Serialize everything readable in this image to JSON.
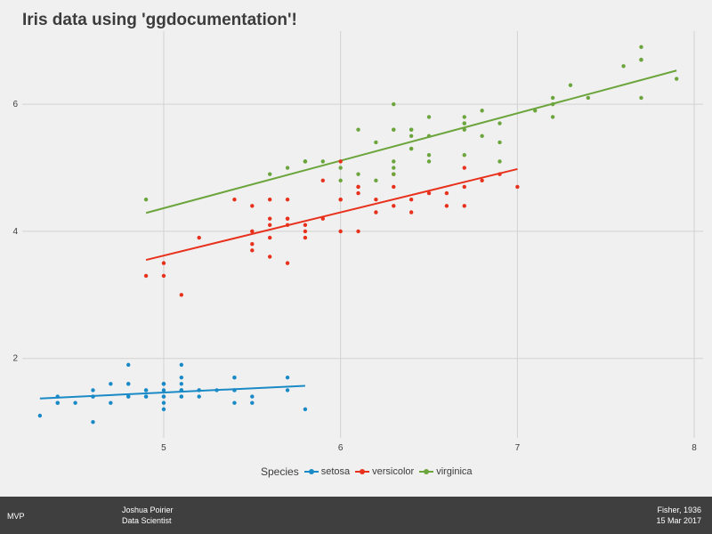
{
  "title": "Iris data using 'ggdocumentation'!",
  "legend": {
    "title": "Species"
  },
  "footer": {
    "left": "MVP",
    "author": "Joshua Poirier",
    "role": "Data Scientist",
    "source": "Fisher, 1936",
    "date": "15 Mar 2017"
  },
  "colors": {
    "setosa": "#1a8ac7",
    "versicolor": "#e8311c",
    "virginica": "#6ba53c",
    "grid": "#d2d2d2",
    "text": "#3c3c3c"
  },
  "chart_data": {
    "type": "scatter",
    "title": "Iris data using 'ggdocumentation'!",
    "xlabel": "",
    "ylabel": "",
    "xlim": [
      4.2,
      8.05
    ],
    "ylim": [
      0.75,
      7.15
    ],
    "xticks": [
      5,
      6,
      7,
      8
    ],
    "yticks": [
      2,
      4,
      6
    ],
    "grid": true,
    "legend_position": "bottom",
    "series": [
      {
        "name": "setosa",
        "color": "#1a8ac7",
        "x": [
          5.1,
          4.9,
          4.7,
          4.6,
          5.0,
          5.4,
          4.6,
          5.0,
          4.4,
          4.9,
          5.4,
          4.8,
          4.8,
          4.3,
          5.8,
          5.7,
          5.4,
          5.1,
          5.7,
          5.1,
          5.4,
          5.1,
          4.6,
          5.1,
          4.8,
          5.0,
          5.0,
          5.2,
          5.2,
          4.7,
          4.8,
          5.4,
          5.2,
          5.5,
          4.9,
          5.0,
          5.5,
          4.9,
          4.4,
          5.1,
          5.0,
          4.5,
          4.4,
          5.0,
          5.1,
          4.8,
          5.1,
          4.6,
          5.3,
          5.0
        ],
        "y": [
          1.4,
          1.4,
          1.3,
          1.5,
          1.4,
          1.7,
          1.4,
          1.5,
          1.4,
          1.5,
          1.5,
          1.6,
          1.4,
          1.1,
          1.2,
          1.5,
          1.3,
          1.4,
          1.7,
          1.5,
          1.7,
          1.5,
          1.0,
          1.7,
          1.9,
          1.6,
          1.6,
          1.5,
          1.4,
          1.6,
          1.6,
          1.5,
          1.5,
          1.4,
          1.5,
          1.2,
          1.3,
          1.4,
          1.3,
          1.5,
          1.3,
          1.3,
          1.3,
          1.6,
          1.9,
          1.4,
          1.6,
          1.4,
          1.5,
          1.4
        ],
        "fit": [
          [
            4.3,
            1.37
          ],
          [
            5.8,
            1.57
          ]
        ]
      },
      {
        "name": "versicolor",
        "color": "#e8311c",
        "x": [
          7.0,
          6.4,
          6.9,
          5.5,
          6.5,
          5.7,
          6.3,
          4.9,
          6.6,
          5.2,
          5.0,
          5.9,
          6.0,
          6.1,
          5.6,
          6.7,
          5.6,
          5.8,
          6.2,
          5.6,
          5.9,
          6.1,
          6.3,
          6.1,
          6.4,
          6.6,
          6.8,
          6.7,
          6.0,
          5.7,
          5.5,
          5.5,
          5.8,
          6.0,
          5.4,
          6.0,
          6.7,
          6.3,
          5.6,
          5.5,
          5.5,
          6.1,
          5.8,
          5.0,
          5.6,
          5.7,
          5.7,
          6.2,
          5.1,
          5.7
        ],
        "y": [
          4.7,
          4.5,
          4.9,
          4.0,
          4.6,
          4.5,
          4.7,
          3.3,
          4.6,
          3.9,
          3.5,
          4.2,
          4.0,
          4.7,
          3.6,
          4.4,
          4.5,
          4.1,
          4.5,
          3.9,
          4.8,
          4.0,
          4.9,
          4.7,
          4.3,
          4.4,
          4.8,
          5.0,
          4.5,
          3.5,
          3.8,
          3.7,
          3.9,
          5.1,
          4.5,
          4.5,
          4.7,
          4.4,
          4.1,
          4.0,
          4.4,
          4.6,
          4.0,
          3.3,
          4.2,
          4.2,
          4.2,
          4.3,
          3.0,
          4.1
        ],
        "fit": [
          [
            4.9,
            3.55
          ],
          [
            7.0,
            4.98
          ]
        ]
      },
      {
        "name": "virginica",
        "color": "#6ba53c",
        "x": [
          6.3,
          5.8,
          7.1,
          6.3,
          6.5,
          7.6,
          4.9,
          7.3,
          6.7,
          7.2,
          6.5,
          6.4,
          6.8,
          5.7,
          5.8,
          6.4,
          6.5,
          7.7,
          7.7,
          6.0,
          6.9,
          5.6,
          7.7,
          6.3,
          6.7,
          7.2,
          6.2,
          6.1,
          6.4,
          7.2,
          7.4,
          7.9,
          6.4,
          6.3,
          6.1,
          7.7,
          6.3,
          6.4,
          6.0,
          6.9,
          6.7,
          6.9,
          5.8,
          6.8,
          6.7,
          6.7,
          6.3,
          6.5,
          6.2,
          5.9
        ],
        "y": [
          6.0,
          5.1,
          5.9,
          5.6,
          5.8,
          6.6,
          4.5,
          6.3,
          5.8,
          6.1,
          5.1,
          5.3,
          5.5,
          5.0,
          5.1,
          5.3,
          5.5,
          6.7,
          6.9,
          5.0,
          5.7,
          4.9,
          6.7,
          4.9,
          5.7,
          6.0,
          4.8,
          4.9,
          5.6,
          5.8,
          6.1,
          6.4,
          5.6,
          5.1,
          5.6,
          6.1,
          5.6,
          5.5,
          4.8,
          5.4,
          5.6,
          5.1,
          5.1,
          5.9,
          5.7,
          5.2,
          5.0,
          5.2,
          5.4,
          5.1
        ],
        "fit": [
          [
            4.9,
            4.29
          ],
          [
            7.9,
            6.53
          ]
        ]
      }
    ]
  }
}
